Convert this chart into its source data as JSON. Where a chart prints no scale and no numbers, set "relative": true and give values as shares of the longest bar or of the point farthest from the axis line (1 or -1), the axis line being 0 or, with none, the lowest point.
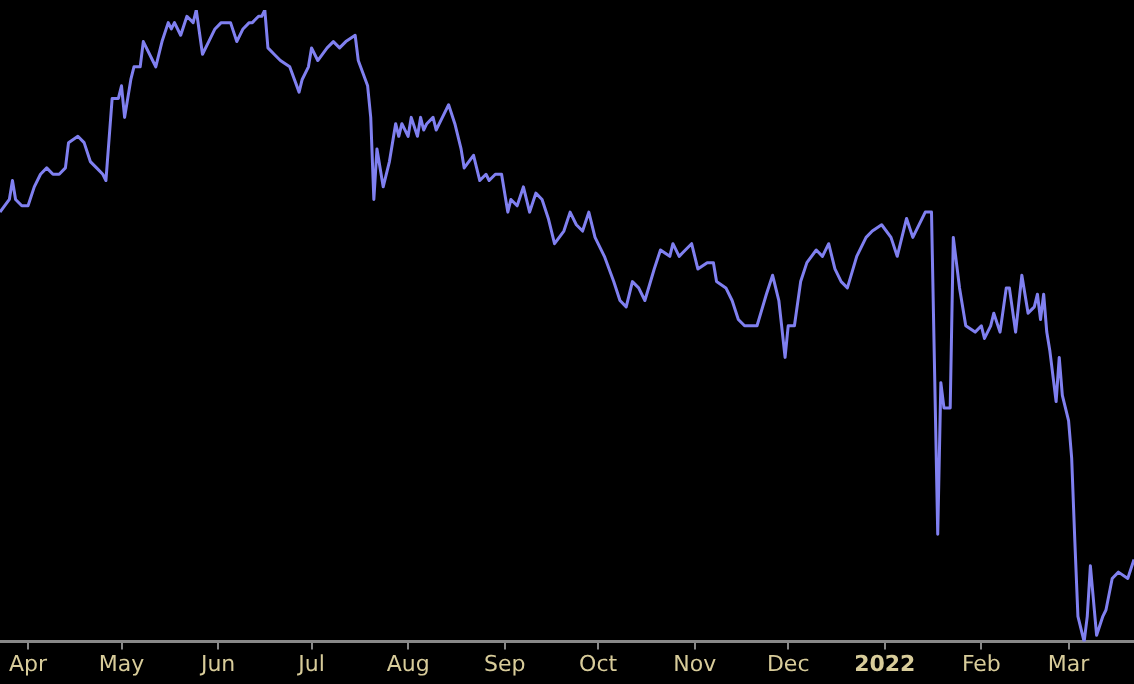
{
  "chart_data": {
    "type": "line",
    "relative": true,
    "grid": false,
    "legend": false,
    "marker": "none",
    "line_style": "solid",
    "xlim": [
      "2021-03-23",
      "2022-03-22"
    ],
    "xticks": [
      {
        "value": "2021-04-01",
        "label": "Apr"
      },
      {
        "value": "2021-05-01",
        "label": "May"
      },
      {
        "value": "2021-06-01",
        "label": "Jun"
      },
      {
        "value": "2021-07-01",
        "label": "Jul"
      },
      {
        "value": "2021-08-01",
        "label": "Aug"
      },
      {
        "value": "2021-09-01",
        "label": "Sep"
      },
      {
        "value": "2021-10-01",
        "label": "Oct"
      },
      {
        "value": "2021-11-01",
        "label": "Nov"
      },
      {
        "value": "2021-12-01",
        "label": "Dec"
      },
      {
        "value": "2022-01-01",
        "label": "2022"
      },
      {
        "value": "2022-02-01",
        "label": "Feb"
      },
      {
        "value": "2022-03-01",
        "label": "Mar"
      }
    ],
    "x": [
      "2021-03-23",
      "2021-03-26",
      "2021-03-27",
      "2021-03-28",
      "2021-03-30",
      "2021-04-01",
      "2021-04-03",
      "2021-04-05",
      "2021-04-07",
      "2021-04-09",
      "2021-04-11",
      "2021-04-13",
      "2021-04-14",
      "2021-04-17",
      "2021-04-19",
      "2021-04-21",
      "2021-04-23",
      "2021-04-25",
      "2021-04-26",
      "2021-04-28",
      "2021-04-30",
      "2021-05-01",
      "2021-05-02",
      "2021-05-04",
      "2021-05-05",
      "2021-05-07",
      "2021-05-08",
      "2021-05-11",
      "2021-05-12",
      "2021-05-14",
      "2021-05-16",
      "2021-05-17",
      "2021-05-18",
      "2021-05-20",
      "2021-05-22",
      "2021-05-24",
      "2021-05-25",
      "2021-05-27",
      "2021-05-29",
      "2021-05-31",
      "2021-06-02",
      "2021-06-05",
      "2021-06-07",
      "2021-06-09",
      "2021-06-11",
      "2021-06-12",
      "2021-06-14",
      "2021-06-15",
      "2021-06-16",
      "2021-06-17",
      "2021-06-19",
      "2021-06-21",
      "2021-06-24",
      "2021-06-27",
      "2021-06-28",
      "2021-06-30",
      "2021-07-01",
      "2021-07-03",
      "2021-07-06",
      "2021-07-08",
      "2021-07-10",
      "2021-07-12",
      "2021-07-15",
      "2021-07-16",
      "2021-07-19",
      "2021-07-20",
      "2021-07-21",
      "2021-07-22",
      "2021-07-24",
      "2021-07-26",
      "2021-07-28",
      "2021-07-29",
      "2021-07-30",
      "2021-08-01",
      "2021-08-02",
      "2021-08-04",
      "2021-08-05",
      "2021-08-06",
      "2021-08-07",
      "2021-08-09",
      "2021-08-10",
      "2021-08-12",
      "2021-08-14",
      "2021-08-16",
      "2021-08-18",
      "2021-08-19",
      "2021-08-22",
      "2021-08-24",
      "2021-08-26",
      "2021-08-27",
      "2021-08-29",
      "2021-08-31",
      "2021-09-02",
      "2021-09-03",
      "2021-09-05",
      "2021-09-07",
      "2021-09-09",
      "2021-09-11",
      "2021-09-13",
      "2021-09-15",
      "2021-09-17",
      "2021-09-20",
      "2021-09-22",
      "2021-09-24",
      "2021-09-26",
      "2021-09-28",
      "2021-09-30",
      "2021-10-03",
      "2021-10-06",
      "2021-10-08",
      "2021-10-10",
      "2021-10-12",
      "2021-10-14",
      "2021-10-16",
      "2021-10-19",
      "2021-10-21",
      "2021-10-24",
      "2021-10-25",
      "2021-10-27",
      "2021-10-29",
      "2021-10-31",
      "2021-11-02",
      "2021-11-05",
      "2021-11-07",
      "2021-11-08",
      "2021-11-11",
      "2021-11-13",
      "2021-11-15",
      "2021-11-17",
      "2021-11-19",
      "2021-11-21",
      "2021-11-24",
      "2021-11-26",
      "2021-11-28",
      "2021-11-30",
      "2021-12-01",
      "2021-12-03",
      "2021-12-05",
      "2021-12-07",
      "2021-12-10",
      "2021-12-12",
      "2021-12-14",
      "2021-12-16",
      "2021-12-18",
      "2021-12-20",
      "2021-12-23",
      "2021-12-26",
      "2021-12-28",
      "2021-12-31",
      "2022-01-03",
      "2022-01-05",
      "2022-01-08",
      "2022-01-10",
      "2022-01-14",
      "2022-01-16",
      "2022-01-18",
      "2022-01-19",
      "2022-01-20",
      "2022-01-22",
      "2022-01-23",
      "2022-01-25",
      "2022-01-27",
      "2022-01-30",
      "2022-02-01",
      "2022-02-02",
      "2022-02-04",
      "2022-02-05",
      "2022-02-07",
      "2022-02-09",
      "2022-02-10",
      "2022-02-12",
      "2022-02-14",
      "2022-02-16",
      "2022-02-18",
      "2022-02-19",
      "2022-02-20",
      "2022-02-21",
      "2022-02-22",
      "2022-02-23",
      "2022-02-25",
      "2022-02-26",
      "2022-02-27",
      "2022-03-01",
      "2022-03-02",
      "2022-03-03",
      "2022-03-04",
      "2022-03-06",
      "2022-03-07",
      "2022-03-08",
      "2022-03-10",
      "2022-03-12",
      "2022-03-13",
      "2022-03-15",
      "2022-03-17",
      "2022-03-20",
      "2022-03-22"
    ],
    "series": [
      {
        "color": "#8080f0",
        "values": [
          0.68,
          0.7,
          0.73,
          0.7,
          0.69,
          0.69,
          0.72,
          0.74,
          0.75,
          0.74,
          0.74,
          0.75,
          0.79,
          0.8,
          0.79,
          0.76,
          0.75,
          0.74,
          0.73,
          0.86,
          0.86,
          0.88,
          0.83,
          0.89,
          0.91,
          0.91,
          0.95,
          0.92,
          0.91,
          0.95,
          0.98,
          0.97,
          0.98,
          0.96,
          0.99,
          0.98,
          1.0,
          0.93,
          0.95,
          0.97,
          0.98,
          0.98,
          0.95,
          0.97,
          0.98,
          0.98,
          0.99,
          0.99,
          1.0,
          0.94,
          0.93,
          0.92,
          0.91,
          0.87,
          0.89,
          0.91,
          0.94,
          0.92,
          0.94,
          0.95,
          0.94,
          0.95,
          0.96,
          0.92,
          0.88,
          0.83,
          0.7,
          0.78,
          0.72,
          0.76,
          0.82,
          0.8,
          0.82,
          0.8,
          0.83,
          0.8,
          0.83,
          0.81,
          0.82,
          0.83,
          0.81,
          0.83,
          0.85,
          0.82,
          0.78,
          0.75,
          0.77,
          0.73,
          0.74,
          0.73,
          0.74,
          0.74,
          0.68,
          0.7,
          0.69,
          0.72,
          0.68,
          0.71,
          0.7,
          0.67,
          0.63,
          0.65,
          0.68,
          0.66,
          0.65,
          0.68,
          0.64,
          0.61,
          0.57,
          0.54,
          0.53,
          0.57,
          0.56,
          0.54,
          0.59,
          0.62,
          0.61,
          0.63,
          0.61,
          0.62,
          0.63,
          0.59,
          0.6,
          0.6,
          0.57,
          0.56,
          0.54,
          0.51,
          0.5,
          0.5,
          0.5,
          0.55,
          0.58,
          0.54,
          0.45,
          0.5,
          0.5,
          0.57,
          0.6,
          0.62,
          0.61,
          0.63,
          0.59,
          0.57,
          0.56,
          0.61,
          0.64,
          0.65,
          0.66,
          0.64,
          0.61,
          0.67,
          0.64,
          0.68,
          0.68,
          0.17,
          0.41,
          0.37,
          0.37,
          0.64,
          0.56,
          0.5,
          0.49,
          0.5,
          0.48,
          0.5,
          0.52,
          0.49,
          0.56,
          0.56,
          0.49,
          0.58,
          0.52,
          0.53,
          0.55,
          0.51,
          0.55,
          0.49,
          0.46,
          0.38,
          0.45,
          0.39,
          0.35,
          0.29,
          0.16,
          0.04,
          0.0,
          0.04,
          0.12,
          0.01,
          0.04,
          0.05,
          0.1,
          0.11,
          0.1,
          0.13
        ]
      }
    ]
  }
}
